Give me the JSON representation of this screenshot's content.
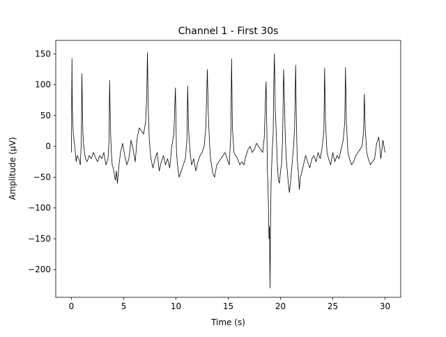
{
  "chart_data": {
    "type": "line",
    "title": "Channel 1 - First 30s",
    "xlabel": "Time (s)",
    "ylabel": "Amplitude (µV)",
    "xlim": [
      -1.5,
      31.5
    ],
    "ylim": [
      -245,
      172
    ],
    "x_ticks": [
      0,
      5,
      10,
      15,
      20,
      25,
      30
    ],
    "x_tick_labels": [
      "0",
      "5",
      "10",
      "15",
      "20",
      "25",
      "30"
    ],
    "y_ticks": [
      150,
      100,
      50,
      0,
      -50,
      -100,
      -150,
      -200
    ],
    "y_tick_labels": [
      "150",
      "100",
      "50",
      "0",
      "−50",
      "−100",
      "−150",
      "−200"
    ],
    "grid": false,
    "line_color": "#000000",
    "series": [
      {
        "x": [
          0,
          0.05,
          0.08,
          0.12,
          0.18,
          0.25,
          0.35,
          0.45,
          0.55,
          0.7,
          0.85,
          0.95,
          1.0,
          1.05,
          1.1,
          1.15,
          1.25,
          1.35,
          1.5,
          1.7,
          1.9,
          2.1,
          2.3,
          2.5,
          2.7,
          2.9,
          3.1,
          3.3,
          3.5,
          3.6,
          3.65,
          3.72,
          3.8,
          3.9,
          4.0,
          4.1,
          4.2,
          4.3,
          4.4,
          4.55,
          4.7,
          4.9,
          5.1,
          5.3,
          5.5,
          5.7,
          5.9,
          6.1,
          6.3,
          6.5,
          6.7,
          6.9,
          7.1,
          7.2,
          7.27,
          7.35,
          7.45,
          7.6,
          7.8,
          8.0,
          8.2,
          8.4,
          8.6,
          8.8,
          9.0,
          9.2,
          9.4,
          9.6,
          9.8,
          9.95,
          10.0,
          10.05,
          10.15,
          10.3,
          10.5,
          10.7,
          10.9,
          11.05,
          11.12,
          11.2,
          11.35,
          11.5,
          11.7,
          11.9,
          12.1,
          12.3,
          12.5,
          12.7,
          12.85,
          12.92,
          13.0,
          13.1,
          13.2,
          13.3,
          13.4,
          13.55,
          13.7,
          13.9,
          14.1,
          14.3,
          14.5,
          14.7,
          14.9,
          15.1,
          15.25,
          15.32,
          15.4,
          15.55,
          15.7,
          15.9,
          16.1,
          16.3,
          16.5,
          16.7,
          16.9,
          17.1,
          17.3,
          17.5,
          17.7,
          17.9,
          18.1,
          18.3,
          18.45,
          18.55,
          18.62,
          18.7,
          18.75,
          18.8,
          18.85,
          18.9,
          18.95,
          19.0,
          19.05,
          19.1,
          19.2,
          19.3,
          19.35,
          19.42,
          19.5,
          19.6,
          19.7,
          19.8,
          19.9,
          20.0,
          20.1,
          20.2,
          20.3,
          20.37,
          20.45,
          20.55,
          20.65,
          20.75,
          20.85,
          20.95,
          21.05,
          21.15,
          21.25,
          21.35,
          21.45,
          21.52,
          21.6,
          21.7,
          21.8,
          21.9,
          22.0,
          22.2,
          22.4,
          22.6,
          22.8,
          23.0,
          23.2,
          23.4,
          23.6,
          23.8,
          24.0,
          24.15,
          24.22,
          24.3,
          24.45,
          24.6,
          24.8,
          25.0,
          25.2,
          25.4,
          25.6,
          25.8,
          26.0,
          26.15,
          26.22,
          26.3,
          26.45,
          26.6,
          26.8,
          27.0,
          27.2,
          27.4,
          27.6,
          27.8,
          27.95,
          28.02,
          28.1,
          28.25,
          28.4,
          28.6,
          28.8,
          29.0,
          29.2,
          29.4,
          29.6,
          29.8,
          30.0
        ],
        "y": [
          -10,
          143,
          70,
          45,
          20,
          10,
          -5,
          -25,
          -15,
          -20,
          -30,
          10,
          118,
          60,
          20,
          5,
          -10,
          -20,
          -25,
          -15,
          -20,
          -10,
          -18,
          -25,
          -15,
          -20,
          -10,
          -30,
          -20,
          10,
          107,
          40,
          -5,
          -30,
          -35,
          -45,
          -55,
          -40,
          -60,
          -30,
          -10,
          5,
          -15,
          -30,
          -20,
          10,
          -5,
          -25,
          15,
          30,
          25,
          20,
          40,
          80,
          152,
          60,
          10,
          -20,
          -35,
          -20,
          -10,
          -40,
          -25,
          -15,
          -30,
          -20,
          -35,
          0,
          20,
          95,
          40,
          -10,
          -30,
          -50,
          -40,
          -30,
          -20,
          10,
          98,
          30,
          -10,
          -30,
          -20,
          -40,
          -25,
          -15,
          -10,
          0,
          30,
          70,
          125,
          50,
          10,
          -20,
          -30,
          -45,
          -50,
          -30,
          -25,
          -20,
          -15,
          -10,
          -20,
          -30,
          20,
          142,
          30,
          -10,
          -15,
          -20,
          -30,
          -25,
          -30,
          -15,
          -5,
          0,
          -10,
          -5,
          5,
          0,
          -5,
          -10,
          15,
          70,
          105,
          20,
          -40,
          -60,
          -100,
          -150,
          -130,
          -230,
          -120,
          -60,
          -10,
          20,
          95,
          150,
          60,
          20,
          -30,
          -55,
          -60,
          -40,
          -30,
          10,
          125,
          80,
          20,
          -20,
          -40,
          -60,
          -75,
          -60,
          -40,
          -20,
          0,
          30,
          132,
          40,
          -20,
          -40,
          -70,
          -50,
          -45,
          -30,
          -15,
          -25,
          -35,
          -20,
          -15,
          -25,
          -10,
          -20,
          0,
          25,
          127,
          40,
          -10,
          -20,
          -30,
          -10,
          -25,
          -15,
          -20,
          -5,
          10,
          40,
          128,
          40,
          -10,
          -20,
          -30,
          -25,
          -15,
          -10,
          -5,
          0,
          25,
          85,
          30,
          -10,
          -20,
          -30,
          -25,
          -20,
          5,
          15,
          -20,
          10,
          -10
        ]
      }
    ]
  }
}
